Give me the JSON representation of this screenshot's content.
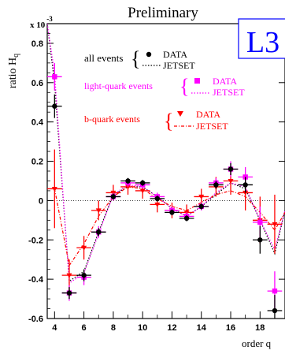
{
  "chart_data": {
    "type": "scatter",
    "title": "Preliminary",
    "experiment_label": "L3",
    "ylabel": "ratio H",
    "ylabel_subscript": "q",
    "y_multiplier": "x 10",
    "y_multiplier_exponent": "-3",
    "xlabel": "order q",
    "xlim": [
      3.5,
      19.7
    ],
    "ylim": [
      -0.6,
      0.9
    ],
    "x_ticks": [
      4,
      6,
      8,
      10,
      12,
      14,
      16,
      18
    ],
    "y_ticks": [
      -0.6,
      -0.4,
      -0.2,
      0,
      0.2,
      0.4,
      0.6,
      0.8
    ],
    "y_tick_labels": [
      "-0.6",
      "-0.4",
      "-0.2",
      "0",
      "0.2",
      "0.4",
      "0.6",
      "0.8"
    ],
    "zero_line": true,
    "legend": {
      "data_label": "DATA",
      "mc_label": "JETSET",
      "groups": [
        {
          "name": "all events",
          "color": "#000000"
        },
        {
          "name": "light-quark events",
          "color": "#ff00ff"
        },
        {
          "name": "b-quark events",
          "color": "#ff0000"
        }
      ]
    },
    "series": [
      {
        "name": "all events",
        "kind": "data",
        "marker": "circle",
        "color": "#000000",
        "x": [
          4,
          5,
          6,
          7,
          8,
          9,
          10,
          11,
          12,
          13,
          14,
          15,
          16,
          17,
          18,
          19
        ],
        "y": [
          0.48,
          -0.47,
          -0.38,
          -0.16,
          0.02,
          0.1,
          0.09,
          0.01,
          -0.06,
          -0.09,
          -0.03,
          0.08,
          0.16,
          0.08,
          -0.2,
          -0.56
        ],
        "err": [
          0.06,
          0.03,
          0.03,
          0.02,
          0.015,
          0.015,
          0.015,
          0.015,
          0.015,
          0.015,
          0.015,
          0.02,
          0.03,
          0.04,
          0.07,
          0.08
        ]
      },
      {
        "name": "all events",
        "kind": "jetset",
        "line": "dotted",
        "color": "#000000",
        "x": [
          3.5,
          4,
          5,
          6,
          7,
          8,
          9,
          10,
          11,
          12,
          13,
          14,
          15,
          16,
          17,
          18,
          19,
          19.7
        ],
        "y": [
          0.9,
          0.6,
          -0.41,
          -0.36,
          -0.16,
          0.03,
          0.07,
          0.07,
          0.02,
          -0.04,
          -0.08,
          -0.03,
          0.03,
          0.09,
          0.06,
          -0.1,
          -0.27,
          -0.05
        ]
      },
      {
        "name": "light-quark events",
        "kind": "data",
        "marker": "square",
        "color": "#ff00ff",
        "x": [
          4,
          5,
          6,
          7,
          8,
          9,
          10,
          11,
          12,
          13,
          14,
          15,
          16,
          17,
          18,
          19
        ],
        "y": [
          0.63,
          -0.47,
          -0.39,
          -0.16,
          0.02,
          0.09,
          0.08,
          0.02,
          -0.05,
          -0.08,
          -0.03,
          0.09,
          0.16,
          0.12,
          -0.11,
          -0.46
        ],
        "err": [
          0.07,
          0.04,
          0.04,
          0.03,
          0.02,
          0.02,
          0.02,
          0.02,
          0.02,
          0.02,
          0.02,
          0.025,
          0.04,
          0.05,
          0.08,
          0.1
        ]
      },
      {
        "name": "light-quark events",
        "kind": "jetset",
        "line": "dotted",
        "color": "#ff00ff",
        "x": [
          3.5,
          4,
          5,
          6,
          7,
          8,
          9,
          10,
          11,
          12,
          13,
          14,
          15,
          16,
          17,
          18,
          19,
          19.7
        ],
        "y": [
          0.9,
          0.65,
          -0.42,
          -0.37,
          -0.17,
          0.03,
          0.08,
          0.07,
          0.02,
          -0.04,
          -0.08,
          -0.03,
          0.04,
          0.09,
          0.07,
          -0.1,
          -0.25,
          -0.05
        ]
      },
      {
        "name": "b-quark events",
        "kind": "data",
        "marker": "triangle-down",
        "color": "#ff0000",
        "x": [
          4,
          5,
          6,
          7,
          8,
          9,
          10,
          11,
          12,
          13,
          14,
          15,
          16,
          17,
          18,
          19
        ],
        "y": [
          0.06,
          -0.38,
          -0.24,
          -0.05,
          0.04,
          0.07,
          0.05,
          -0.02,
          -0.05,
          -0.06,
          0.02,
          0.07,
          0.1,
          0.04,
          -0.1,
          -0.12
        ],
        "err": [
          0.2,
          0.08,
          0.06,
          0.05,
          0.04,
          0.04,
          0.04,
          0.04,
          0.04,
          0.04,
          0.04,
          0.05,
          0.07,
          0.09,
          0.12,
          0.15
        ]
      },
      {
        "name": "b-quark events",
        "kind": "jetset",
        "line": "dash-dot",
        "color": "#ff0000",
        "x": [
          4,
          5,
          6,
          7,
          8,
          9,
          10,
          11,
          12,
          13,
          14,
          15,
          16,
          17,
          18,
          19,
          19.7
        ],
        "y": [
          0.06,
          -0.33,
          -0.22,
          -0.08,
          0.02,
          0.07,
          0.06,
          0.01,
          -0.03,
          -0.05,
          -0.01,
          0.03,
          0.05,
          0.02,
          -0.06,
          -0.15,
          -0.06
        ]
      }
    ]
  }
}
